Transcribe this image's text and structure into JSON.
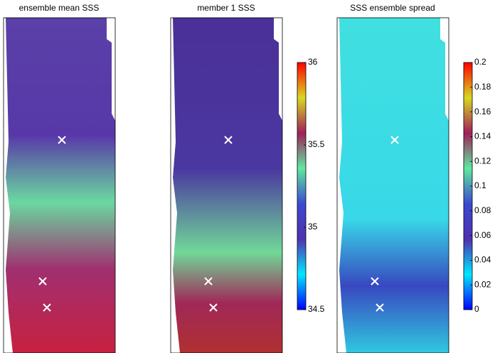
{
  "chart_data": [
    {
      "type": "map",
      "title": "ensemble mean SSS"
    },
    {
      "type": "map",
      "title": "member 1 SSS",
      "clim": [
        34.5,
        36
      ],
      "cticks": [
        34.5,
        35,
        35.5,
        36
      ],
      "colormap": [
        "#0000ff",
        "#00e8ff",
        "#5030b0",
        "#3a4ad0",
        "#60e8a0",
        "#a0205a",
        "#d8d820",
        "#ff0000"
      ]
    },
    {
      "type": "map",
      "title": "SSS ensemble spread",
      "clim": [
        0,
        0.2
      ],
      "cticks": [
        0,
        0.02,
        0.04,
        0.06,
        0.08,
        0.1,
        0.12,
        0.14,
        0.16,
        0.18,
        0.2
      ],
      "colormap": [
        "#0000ff",
        "#00e8ff",
        "#5030b0",
        "#3a4ad0",
        "#60e8a0",
        "#a0205a",
        "#d8d820",
        "#ff0000"
      ]
    }
  ]
}
